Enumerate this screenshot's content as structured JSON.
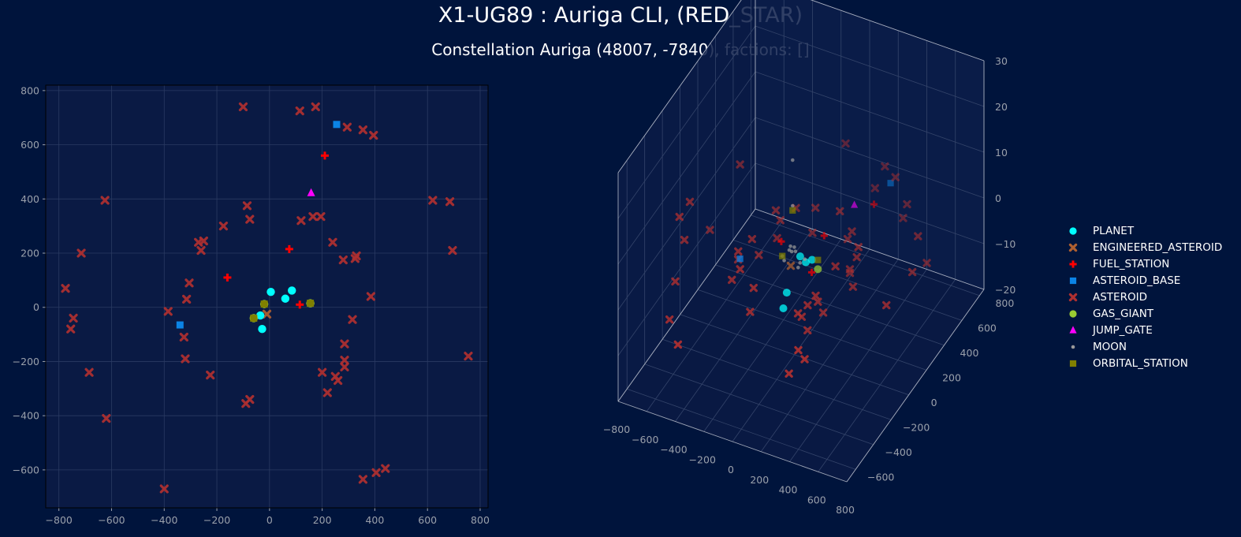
{
  "title": "X1-UG89 : Auriga CLI, (RED_STAR)",
  "subtitle": "Constellation Auriga (48007, -7840), factions: []",
  "colors": {
    "background": "#00143c",
    "axes_face": "#0a1a44",
    "grid": "#2a3a62",
    "tick_text": "#9aa0ab",
    "PLANET": "#00ffff",
    "ENGINEERED_ASTEROID": "#b06030",
    "FUEL_STATION": "#ff0000",
    "ASTEROID_BASE": "#0b84e6",
    "ASTEROID": "#b03030",
    "GAS_GIANT": "#9acd32",
    "JUMP_GATE": "#ff00ff",
    "MOON": "#9a9a9a",
    "ORBITAL_STATION": "#808000"
  },
  "chart_data": [
    {
      "type": "scatter",
      "view": "2d",
      "xlim": [
        -850,
        830
      ],
      "ylim": [
        -740,
        820
      ],
      "xticks": [
        -800,
        -600,
        -400,
        -200,
        0,
        200,
        400,
        600,
        800
      ],
      "yticks": [
        -600,
        -400,
        -200,
        0,
        200,
        400,
        600,
        800
      ],
      "xlabel": "",
      "ylabel": "",
      "grid": true,
      "series": [
        {
          "name": "ASTEROID",
          "marker": "x",
          "color": "#b03030",
          "points": [
            [
              -100,
              740
            ],
            [
              115,
              725
            ],
            [
              175,
              740
            ],
            [
              295,
              665
            ],
            [
              355,
              655
            ],
            [
              395,
              635
            ],
            [
              -625,
              395
            ],
            [
              620,
              395
            ],
            [
              685,
              390
            ],
            [
              695,
              210
            ],
            [
              -715,
              200
            ],
            [
              -775,
              70
            ],
            [
              -745,
              -40
            ],
            [
              -755,
              -80
            ],
            [
              -685,
              -240
            ],
            [
              -620,
              -410
            ],
            [
              -400,
              -670
            ],
            [
              -85,
              375
            ],
            [
              -75,
              325
            ],
            [
              -175,
              300
            ],
            [
              -270,
              240
            ],
            [
              -250,
              245
            ],
            [
              -260,
              210
            ],
            [
              120,
              320
            ],
            [
              165,
              335
            ],
            [
              195,
              335
            ],
            [
              240,
              240
            ],
            [
              280,
              175
            ],
            [
              325,
              180
            ],
            [
              330,
              190
            ],
            [
              -305,
              90
            ],
            [
              -315,
              30
            ],
            [
              -385,
              -15
            ],
            [
              -325,
              -110
            ],
            [
              -320,
              -190
            ],
            [
              -225,
              -250
            ],
            [
              385,
              40
            ],
            [
              315,
              -45
            ],
            [
              285,
              -135
            ],
            [
              285,
              -195
            ],
            [
              285,
              -220
            ],
            [
              250,
              -255
            ],
            [
              260,
              -270
            ],
            [
              200,
              -240
            ],
            [
              220,
              -315
            ],
            [
              -90,
              -355
            ],
            [
              -75,
              -340
            ],
            [
              355,
              -635
            ],
            [
              405,
              -610
            ],
            [
              440,
              -595
            ],
            [
              755,
              -180
            ]
          ]
        },
        {
          "name": "ENGINEERED_ASTEROID",
          "marker": "x",
          "color": "#b06030",
          "points": [
            [
              -10,
              -25
            ]
          ]
        },
        {
          "name": "FUEL_STATION",
          "marker": "+",
          "color": "#ff0000",
          "points": [
            [
              210,
              560
            ],
            [
              75,
              215
            ],
            [
              -160,
              110
            ],
            [
              115,
              10
            ]
          ]
        },
        {
          "name": "ASTEROID_BASE",
          "marker": "square",
          "color": "#0b84e6",
          "points": [
            [
              255,
              675
            ],
            [
              -340,
              -65
            ]
          ]
        },
        {
          "name": "JUMP_GATE",
          "marker": "triangle",
          "color": "#ff00ff",
          "points": [
            [
              158,
              422
            ]
          ]
        },
        {
          "name": "PLANET",
          "marker": "circle",
          "color": "#00ffff",
          "points": [
            [
              85,
              62
            ],
            [
              60,
              32
            ],
            [
              5,
              57
            ],
            [
              -35,
              -30
            ],
            [
              -28,
              -80
            ]
          ]
        },
        {
          "name": "GAS_GIANT",
          "marker": "circle",
          "color": "#9acd32",
          "points": [
            [
              -20,
              12
            ],
            [
              -60,
              -40
            ],
            [
              155,
              15
            ]
          ]
        },
        {
          "name": "ORBITAL_STATION",
          "marker": "square",
          "color": "#808000",
          "points": [
            [
              -20,
              12
            ],
            [
              -60,
              -40
            ],
            [
              155,
              15
            ]
          ]
        }
      ]
    },
    {
      "type": "scatter",
      "view": "3d",
      "xlim": [
        -800,
        800
      ],
      "ylim": [
        -700,
        850
      ],
      "zlim": [
        -20,
        30
      ],
      "xticks": [
        -800,
        -600,
        -400,
        -200,
        0,
        200,
        400,
        600,
        800
      ],
      "yticks": [
        -600,
        -400,
        -200,
        0,
        200,
        400,
        600,
        800
      ],
      "zticks": [
        -20,
        -10,
        0,
        10,
        20,
        30
      ],
      "grid": true,
      "series": [
        {
          "name": "ASTEROID",
          "marker": "x",
          "color": "#b03030",
          "points": [
            [
              -100,
              740,
              5
            ],
            [
              115,
              725,
              -2
            ],
            [
              175,
              740,
              3
            ],
            [
              295,
              665,
              4
            ],
            [
              355,
              655,
              -4
            ],
            [
              395,
              635,
              0
            ],
            [
              -625,
              395,
              4
            ],
            [
              620,
              395,
              2
            ],
            [
              685,
              390,
              -3
            ],
            [
              695,
              210,
              0
            ],
            [
              -715,
              200,
              -6
            ],
            [
              -775,
              70,
              3
            ],
            [
              -745,
              -40,
              -2
            ],
            [
              -755,
              -80,
              4
            ],
            [
              -685,
              -240,
              -5
            ],
            [
              -620,
              -410,
              -8
            ],
            [
              -400,
              -670,
              -4
            ],
            [
              -85,
              375,
              1
            ],
            [
              -75,
              325,
              -3
            ],
            [
              -175,
              300,
              2
            ],
            [
              -270,
              240,
              -4
            ],
            [
              -250,
              245,
              0
            ],
            [
              -260,
              210,
              3
            ],
            [
              120,
              320,
              4
            ],
            [
              165,
              335,
              -2
            ],
            [
              195,
              335,
              0
            ],
            [
              240,
              240,
              -6
            ],
            [
              280,
              175,
              -3
            ],
            [
              325,
              180,
              0
            ],
            [
              330,
              190,
              2
            ],
            [
              -305,
              90,
              -4
            ],
            [
              -315,
              30,
              1
            ],
            [
              -385,
              -15,
              -3
            ],
            [
              -325,
              -110,
              2
            ],
            [
              -320,
              -190,
              -2
            ],
            [
              -225,
              -250,
              3
            ],
            [
              385,
              40,
              -2
            ],
            [
              315,
              -45,
              4
            ],
            [
              285,
              -135,
              -4
            ],
            [
              285,
              -195,
              0
            ],
            [
              285,
              -220,
              2
            ],
            [
              250,
              -255,
              -5
            ],
            [
              260,
              -270,
              1
            ],
            [
              200,
              -240,
              -3
            ],
            [
              220,
              -315,
              0
            ],
            [
              -90,
              -355,
              -2
            ],
            [
              -75,
              -340,
              3
            ],
            [
              355,
              -635,
              -3
            ],
            [
              405,
              -610,
              2
            ],
            [
              440,
              -595,
              0
            ],
            [
              755,
              -180,
              4
            ]
          ]
        },
        {
          "name": "ENGINEERED_ASTEROID",
          "marker": "x",
          "color": "#b06030",
          "points": [
            [
              -10,
              -25,
              0
            ]
          ]
        },
        {
          "name": "FUEL_STATION",
          "marker": "+",
          "color": "#ff0000",
          "points": [
            [
              210,
              560,
              0
            ],
            [
              75,
              215,
              1
            ],
            [
              -160,
              110,
              0
            ],
            [
              115,
              10,
              -1
            ]
          ]
        },
        {
          "name": "ASTEROID_BASE",
          "marker": "square",
          "color": "#0b84e6",
          "points": [
            [
              255,
              675,
              2
            ],
            [
              -340,
              -65,
              -1
            ]
          ]
        },
        {
          "name": "JUMP_GATE",
          "marker": "triangle",
          "color": "#ff00ff",
          "points": [
            [
              158,
              422,
              3
            ]
          ]
        },
        {
          "name": "PLANET",
          "marker": "circle",
          "color": "#00ffff",
          "points": [
            [
              85,
              62,
              0
            ],
            [
              60,
              32,
              0
            ],
            [
              5,
              57,
              0
            ],
            [
              -35,
              -30,
              -6
            ],
            [
              -28,
              -80,
              -8
            ]
          ]
        },
        {
          "name": "GAS_GIANT",
          "marker": "circle",
          "color": "#9acd32",
          "points": [
            [
              155,
              15,
              0
            ]
          ]
        },
        {
          "name": "MOON",
          "marker": "dot",
          "color": "#9a9a9a",
          "points": [
            [
              -20,
              12,
              22
            ],
            [
              -20,
              12,
              12
            ],
            [
              -25,
              10,
              2
            ],
            [
              -35,
              12,
              3
            ],
            [
              -45,
              14,
              2
            ],
            [
              -10,
              15,
              3
            ],
            [
              -5,
              20,
              2
            ],
            [
              -60,
              -40,
              2
            ],
            [
              -50,
              -35,
              1
            ],
            [
              20,
              10,
              -1
            ],
            [
              30,
              15,
              0
            ],
            [
              60,
              20,
              1
            ]
          ]
        },
        {
          "name": "ORBITAL_STATION",
          "marker": "square",
          "color": "#808000",
          "points": [
            [
              -20,
              12,
              11
            ],
            [
              -60,
              -40,
              2
            ],
            [
              155,
              15,
              2
            ]
          ]
        }
      ]
    }
  ],
  "legend": {
    "placement": "right",
    "items": [
      {
        "label": "PLANET",
        "marker": "circle",
        "color": "#00ffff"
      },
      {
        "label": "ENGINEERED_ASTEROID",
        "marker": "x",
        "color": "#b06030"
      },
      {
        "label": "FUEL_STATION",
        "marker": "+",
        "color": "#ff0000"
      },
      {
        "label": "ASTEROID_BASE",
        "marker": "square",
        "color": "#0b84e6"
      },
      {
        "label": "ASTEROID",
        "marker": "x",
        "color": "#b03030"
      },
      {
        "label": "GAS_GIANT",
        "marker": "circle",
        "color": "#9acd32"
      },
      {
        "label": "JUMP_GATE",
        "marker": "triangle",
        "color": "#ff00ff"
      },
      {
        "label": "MOON",
        "marker": "dot",
        "color": "#9a9a9a"
      },
      {
        "label": "ORBITAL_STATION",
        "marker": "square",
        "color": "#808000"
      }
    ]
  }
}
